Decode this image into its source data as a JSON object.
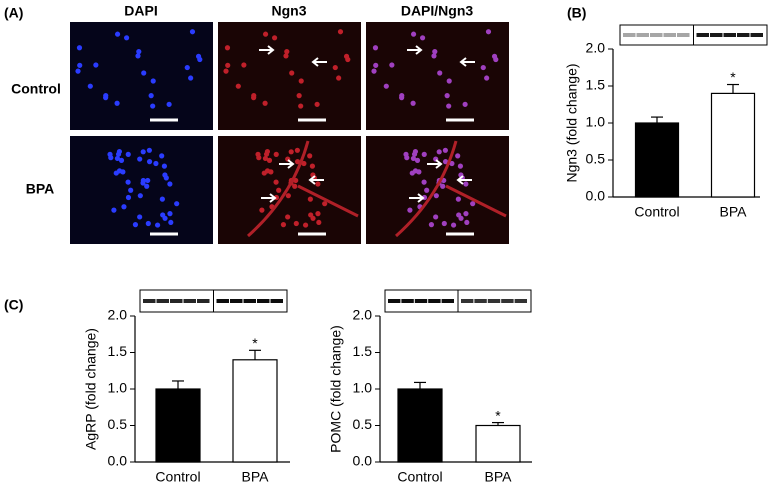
{
  "panel_a": {
    "label": "(A)",
    "columns": [
      "DAPI",
      "Ngn3",
      "DAPI/Ngn3"
    ],
    "rows": [
      "Control",
      "BPA"
    ]
  },
  "panel_b_label": "(B)",
  "panel_c_label": "(C)",
  "chart_data": [
    {
      "type": "bar",
      "y_label": "Ngn3 (fold change)",
      "categories": [
        "Control",
        "BPA"
      ],
      "values": [
        1.0,
        1.4
      ],
      "errors": [
        0.08,
        0.12
      ],
      "significance": [
        null,
        "*"
      ],
      "colors": [
        "#000000",
        "#ffffff"
      ],
      "ylim": [
        0,
        2
      ],
      "yticks": [
        {
          "value": 0,
          "label": "0.0"
        },
        {
          "value": 0.5,
          "label": "0.5"
        },
        {
          "value": 1,
          "label": "1.0"
        },
        {
          "value": 1.5,
          "label": "1.5"
        },
        {
          "value": 2,
          "label": "2.0"
        }
      ]
    },
    {
      "type": "bar",
      "y_label": "AgRP (fold change)",
      "categories": [
        "Control",
        "BPA"
      ],
      "values": [
        1.0,
        1.4
      ],
      "errors": [
        0.11,
        0.13
      ],
      "significance": [
        null,
        "*"
      ],
      "colors": [
        "#000000",
        "#ffffff"
      ],
      "ylim": [
        0,
        2
      ],
      "yticks": [
        {
          "value": 0,
          "label": "0.0"
        },
        {
          "value": 0.5,
          "label": "0.5"
        },
        {
          "value": 1,
          "label": "1.0"
        },
        {
          "value": 1.5,
          "label": "1.5"
        },
        {
          "value": 2,
          "label": "2.0"
        }
      ]
    },
    {
      "type": "bar",
      "y_label": "POMC (fold change)",
      "categories": [
        "Control",
        "BPA"
      ],
      "values": [
        1.0,
        0.5
      ],
      "errors": [
        0.09,
        0.04
      ],
      "significance": [
        null,
        "*"
      ],
      "colors": [
        "#000000",
        "#ffffff"
      ],
      "ylim": [
        0,
        2
      ],
      "yticks": [
        {
          "value": 0,
          "label": "0.0"
        },
        {
          "value": 0.5,
          "label": "0.5"
        },
        {
          "value": 1,
          "label": "1.0"
        },
        {
          "value": 1.5,
          "label": "1.5"
        },
        {
          "value": 2,
          "label": "2.0"
        }
      ]
    }
  ]
}
